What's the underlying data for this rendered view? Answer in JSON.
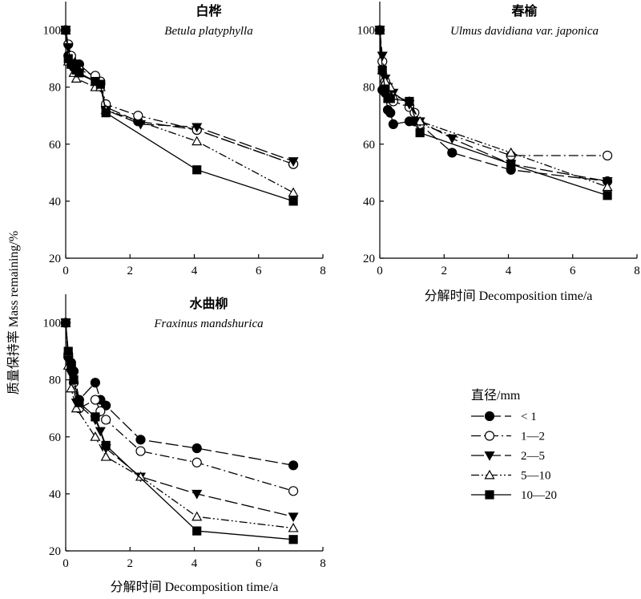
{
  "figure": {
    "ylabel": "质量保持率 Mass remaining/%",
    "xlabel_panel2": "分解时间 Decomposition time/a",
    "xlabel_panel3": "分解时间 Decomposition time/a"
  },
  "legend": {
    "title": "直径/mm",
    "entries": [
      {
        "label": "< 1",
        "marker": "circle",
        "fill": "#000000",
        "dash": "long-dash"
      },
      {
        "label": "1—2",
        "marker": "circle",
        "fill": "#ffffff",
        "dash": "dash-dot"
      },
      {
        "label": "2—5",
        "marker": "triangle-down",
        "fill": "#000000",
        "dash": "long-dash"
      },
      {
        "label": "5—10",
        "marker": "triangle-up",
        "fill": "#ffffff",
        "dash": "dash-dot-dot"
      },
      {
        "label": "10—20",
        "marker": "square",
        "fill": "#000000",
        "dash": "solid"
      }
    ]
  },
  "chart_data": [
    {
      "type": "line",
      "title": "白桦",
      "subtitle": "Betula platyphylla",
      "xlim": [
        0,
        8
      ],
      "ylim": [
        20,
        110
      ],
      "xticks": [
        0,
        2,
        4,
        6,
        8
      ],
      "yticks": [
        20,
        40,
        60,
        80,
        100
      ],
      "xlabel": "",
      "ylabel": "",
      "series": [
        {
          "name": "< 1",
          "x": [
            0,
            0.08,
            0.17,
            0.25,
            0.33,
            0.42,
            0.92,
            1.08,
            1.25,
            2.25,
            4.08,
            7.08
          ],
          "y": [
            100,
            91,
            90,
            87,
            88,
            88,
            83,
            81,
            73,
            68,
            65,
            53
          ]
        },
        {
          "name": "1—2",
          "x": [
            0,
            0.08,
            0.17,
            0.25,
            0.42,
            0.92,
            1.08,
            1.25,
            2.25,
            4.08,
            7.08
          ],
          "y": [
            100,
            95,
            91,
            88,
            86,
            84,
            82,
            74,
            70,
            65,
            53
          ]
        },
        {
          "name": "2—5",
          "x": [
            0,
            0.08,
            0.17,
            0.25,
            0.33,
            0.92,
            1.08,
            1.25,
            2.33,
            4.08,
            7.08
          ],
          "y": [
            100,
            94,
            88,
            86,
            85,
            82,
            80,
            72,
            67,
            66,
            54
          ]
        },
        {
          "name": "5—10",
          "x": [
            0,
            0.08,
            0.25,
            0.33,
            0.92,
            1.08,
            1.25,
            4.08,
            7.08
          ],
          "y": [
            100,
            89,
            85,
            83,
            80,
            80,
            72,
            61,
            43
          ]
        },
        {
          "name": "10—20",
          "x": [
            0,
            0.08,
            0.17,
            0.25,
            0.33,
            0.42,
            0.92,
            1.08,
            1.25,
            4.08,
            7.08
          ],
          "y": [
            100,
            90,
            88,
            88,
            86,
            85,
            82,
            81,
            71,
            51,
            40
          ]
        }
      ]
    },
    {
      "type": "line",
      "title": "春榆",
      "subtitle": "Ulmus davidiana var. japonica",
      "xlim": [
        0,
        8
      ],
      "ylim": [
        20,
        110
      ],
      "xticks": [
        0,
        2,
        4,
        6,
        8
      ],
      "yticks": [
        20,
        40,
        60,
        80,
        100
      ],
      "xlabel": "分解时间 Decomposition time/a",
      "ylabel": "",
      "series": [
        {
          "name": "< 1",
          "x": [
            0,
            0.08,
            0.17,
            0.25,
            0.33,
            0.42,
            0.92,
            1.08,
            1.25,
            2.25,
            4.08,
            7.08
          ],
          "y": [
            100,
            79,
            78,
            72,
            71,
            67,
            68,
            68,
            67,
            57,
            51,
            47
          ]
        },
        {
          "name": "1—2",
          "x": [
            0,
            0.08,
            0.17,
            0.25,
            0.42,
            0.92,
            1.08,
            1.25,
            4.08,
            7.08
          ],
          "y": [
            100,
            89,
            82,
            79,
            75,
            73,
            71,
            67,
            56,
            56
          ]
        },
        {
          "name": "2—5",
          "x": [
            0,
            0.08,
            0.17,
            0.25,
            0.42,
            0.92,
            1.25,
            2.25,
            4.08,
            7.08
          ],
          "y": [
            100,
            91,
            83,
            80,
            78,
            74,
            68,
            62,
            53,
            47
          ]
        },
        {
          "name": "5—10",
          "x": [
            0,
            0.08,
            0.17,
            0.33,
            0.42,
            0.92,
            1.25,
            4.08,
            7.08
          ],
          "y": [
            100,
            86,
            82,
            80,
            77,
            75,
            68,
            57,
            45
          ]
        },
        {
          "name": "10—20",
          "x": [
            0,
            0.08,
            0.17,
            0.25,
            0.33,
            0.92,
            1.25,
            4.08,
            7.08
          ],
          "y": [
            100,
            86,
            79,
            76,
            76,
            75,
            64,
            53,
            42
          ]
        }
      ]
    },
    {
      "type": "line",
      "title": "水曲柳",
      "subtitle": "Fraxinus mandshurica",
      "xlim": [
        0,
        8
      ],
      "ylim": [
        20,
        110
      ],
      "xticks": [
        0,
        2,
        4,
        6,
        8
      ],
      "yticks": [
        20,
        40,
        60,
        80,
        100
      ],
      "xlabel": "分解时间 Decomposition time/a",
      "ylabel": "",
      "series": [
        {
          "name": "< 1",
          "x": [
            0,
            0.08,
            0.17,
            0.25,
            0.42,
            0.92,
            1.08,
            1.25,
            2.33,
            4.08,
            7.08
          ],
          "y": [
            100,
            88,
            86,
            83,
            73,
            79,
            73,
            71,
            59,
            56,
            50
          ]
        },
        {
          "name": "1—2",
          "x": [
            0,
            0.08,
            0.17,
            0.25,
            0.42,
            0.92,
            1.08,
            1.25,
            2.33,
            4.08,
            7.08
          ],
          "y": [
            100,
            89,
            85,
            79,
            70,
            73,
            69,
            66,
            55,
            51,
            41
          ]
        },
        {
          "name": "2—5",
          "x": [
            0,
            0.08,
            0.17,
            0.33,
            0.92,
            1.08,
            1.25,
            2.33,
            4.08,
            7.08
          ],
          "y": [
            100,
            87,
            82,
            72,
            66,
            62,
            56,
            46,
            40,
            32
          ]
        },
        {
          "name": "5—10",
          "x": [
            0,
            0.08,
            0.17,
            0.33,
            0.92,
            1.25,
            2.33,
            4.08,
            7.08
          ],
          "y": [
            100,
            85,
            77,
            70,
            60,
            53,
            46,
            32,
            28
          ]
        },
        {
          "name": "10—20",
          "x": [
            0,
            0.08,
            0.17,
            0.25,
            0.42,
            0.92,
            1.25,
            4.08,
            7.08
          ],
          "y": [
            100,
            90,
            85,
            80,
            72,
            67,
            57,
            27,
            24
          ]
        }
      ]
    }
  ]
}
